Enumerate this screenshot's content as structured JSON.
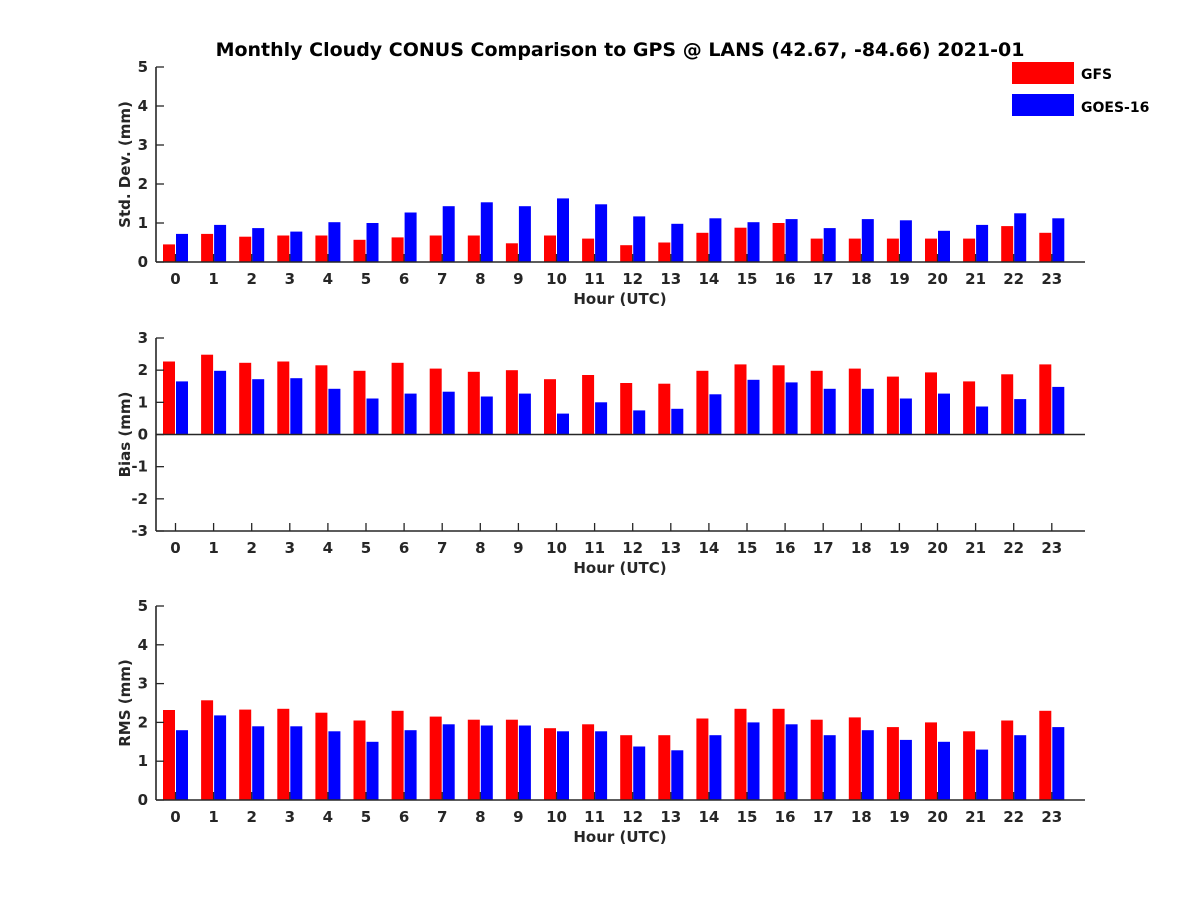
{
  "title": "Monthly Cloudy CONUS Comparison to GPS @ LANS (42.67, -84.66) 2021-01",
  "legend": [
    {
      "label": "GFS",
      "color": "#ff0000"
    },
    {
      "label": "GOES-16",
      "color": "#0000ff"
    }
  ],
  "chart_data": [
    {
      "type": "bar",
      "xlabel": "Hour (UTC)",
      "ylabel": "Std. Dev. (mm)",
      "ylim": [
        0,
        5
      ],
      "yticks": [
        0,
        1,
        2,
        3,
        4,
        5
      ],
      "categories": [
        "0",
        "1",
        "2",
        "3",
        "4",
        "5",
        "6",
        "7",
        "8",
        "9",
        "10",
        "11",
        "12",
        "13",
        "14",
        "15",
        "16",
        "17",
        "18",
        "19",
        "20",
        "21",
        "22",
        "23"
      ],
      "series": [
        {
          "name": "GFS",
          "color": "#ff0000",
          "values": [
            0.45,
            0.72,
            0.65,
            0.68,
            0.68,
            0.57,
            0.63,
            0.68,
            0.68,
            0.48,
            0.68,
            0.6,
            0.43,
            0.5,
            0.75,
            0.88,
            1.0,
            0.6,
            0.6,
            0.6,
            0.6,
            0.6,
            0.92,
            0.75
          ]
        },
        {
          "name": "GOES-16",
          "color": "#0000ff",
          "values": [
            0.72,
            0.95,
            0.87,
            0.78,
            1.02,
            1.0,
            1.27,
            1.43,
            1.53,
            1.43,
            1.63,
            1.48,
            1.17,
            0.98,
            1.12,
            1.02,
            1.1,
            0.87,
            1.1,
            1.07,
            0.8,
            0.95,
            1.25,
            1.12
          ]
        }
      ]
    },
    {
      "type": "bar",
      "xlabel": "Hour (UTC)",
      "ylabel": "Bias (mm)",
      "ylim": [
        -3,
        3
      ],
      "yticks": [
        -3,
        -2,
        -1,
        0,
        1,
        2,
        3
      ],
      "categories": [
        "0",
        "1",
        "2",
        "3",
        "4",
        "5",
        "6",
        "7",
        "8",
        "9",
        "10",
        "11",
        "12",
        "13",
        "14",
        "15",
        "16",
        "17",
        "18",
        "19",
        "20",
        "21",
        "22",
        "23"
      ],
      "series": [
        {
          "name": "GFS",
          "color": "#ff0000",
          "values": [
            2.27,
            2.48,
            2.23,
            2.27,
            2.15,
            1.98,
            2.23,
            2.05,
            1.95,
            2.0,
            1.72,
            1.85,
            1.6,
            1.58,
            1.98,
            2.18,
            2.15,
            1.98,
            2.05,
            1.8,
            1.93,
            1.65,
            1.87,
            2.18
          ]
        },
        {
          "name": "GOES-16",
          "color": "#0000ff",
          "values": [
            1.65,
            1.98,
            1.72,
            1.75,
            1.42,
            1.12,
            1.27,
            1.33,
            1.18,
            1.27,
            0.65,
            1.0,
            0.75,
            0.8,
            1.25,
            1.7,
            1.62,
            1.42,
            1.42,
            1.12,
            1.27,
            0.87,
            1.1,
            1.48
          ]
        }
      ]
    },
    {
      "type": "bar",
      "xlabel": "Hour (UTC)",
      "ylabel": "RMS (mm)",
      "ylim": [
        0,
        5
      ],
      "yticks": [
        0,
        1,
        2,
        3,
        4,
        5
      ],
      "categories": [
        "0",
        "1",
        "2",
        "3",
        "4",
        "5",
        "6",
        "7",
        "8",
        "9",
        "10",
        "11",
        "12",
        "13",
        "14",
        "15",
        "16",
        "17",
        "18",
        "19",
        "20",
        "21",
        "22",
        "23"
      ],
      "series": [
        {
          "name": "GFS",
          "color": "#ff0000",
          "values": [
            2.32,
            2.57,
            2.33,
            2.35,
            2.25,
            2.05,
            2.3,
            2.15,
            2.07,
            2.07,
            1.85,
            1.95,
            1.67,
            1.67,
            2.1,
            2.35,
            2.35,
            2.07,
            2.13,
            1.88,
            2.0,
            1.77,
            2.05,
            2.3
          ]
        },
        {
          "name": "GOES-16",
          "color": "#0000ff",
          "values": [
            1.8,
            2.18,
            1.9,
            1.9,
            1.77,
            1.5,
            1.8,
            1.95,
            1.92,
            1.92,
            1.77,
            1.77,
            1.38,
            1.28,
            1.67,
            2.0,
            1.95,
            1.67,
            1.8,
            1.55,
            1.5,
            1.3,
            1.67,
            1.88
          ]
        }
      ]
    }
  ]
}
